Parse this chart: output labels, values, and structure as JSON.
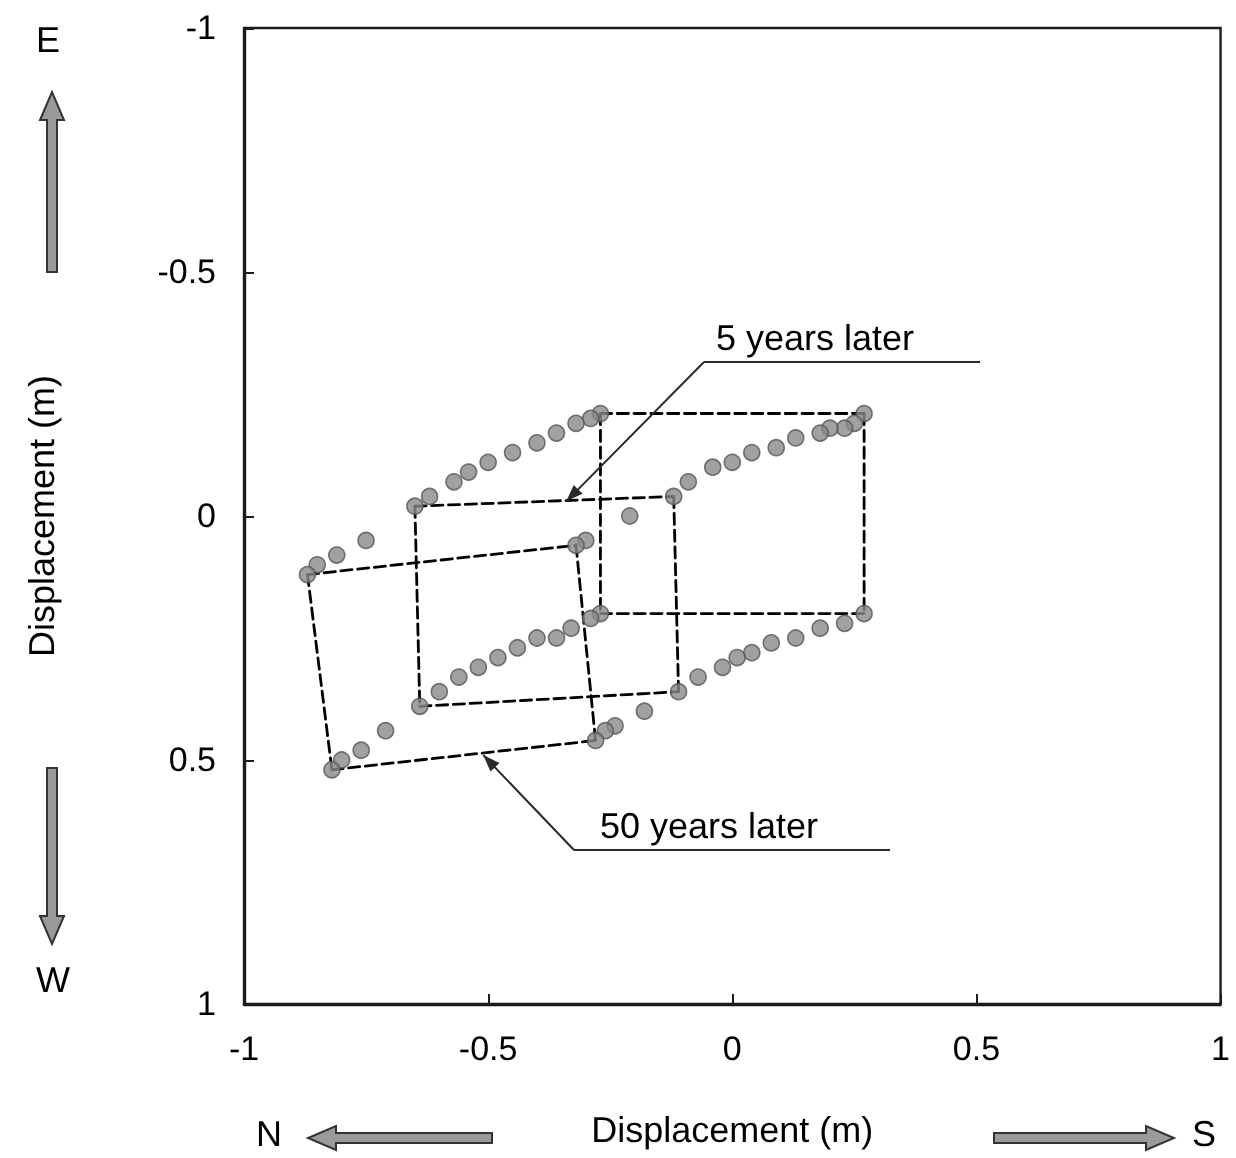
{
  "chart_data": {
    "type": "scatter",
    "xlabel": "Displacement (m)",
    "ylabel": "Displacement (m)",
    "xlim": [
      -1,
      1
    ],
    "ylim": [
      1,
      -1
    ],
    "xticks": [
      -1,
      -0.5,
      0,
      0.5,
      1
    ],
    "yticks": [
      -1,
      -0.5,
      0,
      0.5,
      1
    ],
    "marker": "circle",
    "annotations": [
      "E",
      "W",
      "N",
      "S",
      {
        "text": "5 years later",
        "x": -0.34,
        "y": -0.03
      },
      {
        "text": "50 years later",
        "x": -0.51,
        "y": 0.49
      }
    ],
    "series": [
      {
        "color": "#8a8a8a",
        "x": [
          0.27,
          0.25,
          0.23,
          0.2,
          0.18,
          0.13,
          0.09,
          0.04,
          0,
          -0.04,
          -0.09,
          -0.12,
          -0.21,
          -0.3,
          -0.32
        ],
        "values": [
          -0.21,
          -0.19,
          -0.18,
          -0.18,
          -0.17,
          -0.16,
          -0.14,
          -0.13,
          -0.11,
          -0.1,
          -0.07,
          -0.04,
          0,
          0.05,
          0.06
        ]
      },
      {
        "color": "#8a8a8a",
        "x": [
          -0.27,
          -0.29,
          -0.32,
          -0.36,
          -0.4,
          -0.45,
          -0.5,
          -0.54,
          -0.57,
          -0.62,
          -0.65,
          -0.75,
          -0.81,
          -0.85,
          -0.87
        ],
        "values": [
          -0.21,
          -0.2,
          -0.19,
          -0.17,
          -0.15,
          -0.13,
          -0.11,
          -0.09,
          -0.07,
          -0.04,
          -0.02,
          0.05,
          0.08,
          0.1,
          0.12
        ]
      },
      {
        "color": "#8a8a8a",
        "x": [
          -0.27,
          -0.29,
          -0.33,
          -0.36,
          -0.4,
          -0.44,
          -0.48,
          -0.52,
          -0.56,
          -0.6,
          -0.64,
          -0.71,
          -0.76,
          -0.8,
          -0.82
        ],
        "values": [
          0.2,
          0.21,
          0.23,
          0.25,
          0.25,
          0.27,
          0.29,
          0.31,
          0.33,
          0.36,
          0.39,
          0.44,
          0.48,
          0.5,
          0.52
        ]
      },
      {
        "color": "#8a8a8a",
        "x": [
          0.27,
          0.23,
          0.18,
          0.13,
          0.08,
          0.04,
          0.01,
          -0.02,
          -0.07,
          -0.11,
          -0.18,
          -0.24,
          -0.26,
          -0.28
        ],
        "values": [
          0.2,
          0.22,
          0.23,
          0.25,
          0.26,
          0.28,
          0.29,
          0.31,
          0.33,
          0.36,
          0.4,
          0.43,
          0.44,
          0.46
        ]
      },
      {
        "type": "line",
        "color": "#000000",
        "marker": "none",
        "line_style": "dashed",
        "x": [
          -0.27,
          0.27
        ],
        "values": [
          -0.21,
          -0.21
        ]
      },
      {
        "type": "line",
        "color": "#000000",
        "marker": "none",
        "line_style": "dashed",
        "x": [
          0.27,
          0.27
        ],
        "values": [
          -0.21,
          0.2
        ]
      },
      {
        "type": "line",
        "color": "#000000",
        "marker": "none",
        "line_style": "dashed",
        "x": [
          -0.27,
          0.27
        ],
        "values": [
          0.2,
          0.2
        ]
      },
      {
        "type": "line",
        "color": "#000000",
        "marker": "none",
        "line_style": "dashed",
        "x": [
          -0.27,
          -0.27
        ],
        "values": [
          -0.21,
          0.2
        ]
      },
      {
        "type": "line",
        "color": "#000000",
        "marker": "none",
        "line_style": "dashed",
        "x": [
          -0.65,
          -0.12
        ],
        "values": [
          -0.02,
          -0.04
        ]
      },
      {
        "type": "line",
        "color": "#000000",
        "marker": "none",
        "line_style": "dashed",
        "x": [
          -0.12,
          -0.11
        ],
        "values": [
          -0.04,
          0.36
        ]
      },
      {
        "type": "line",
        "color": "#000000",
        "marker": "none",
        "line_style": "dashed",
        "x": [
          -0.64,
          -0.11
        ],
        "values": [
          0.39,
          0.36
        ]
      },
      {
        "type": "line",
        "color": "#000000",
        "marker": "none",
        "line_style": "dashed",
        "x": [
          -0.65,
          -0.64
        ],
        "values": [
          -0.02,
          0.39
        ]
      },
      {
        "type": "line",
        "color": "#000000",
        "marker": "none",
        "line_style": "dashed",
        "x": [
          -0.87,
          -0.32
        ],
        "values": [
          0.12,
          0.06
        ]
      },
      {
        "type": "line",
        "color": "#000000",
        "marker": "none",
        "line_style": "dashed",
        "x": [
          -0.32,
          -0.28
        ],
        "values": [
          0.06,
          0.46
        ]
      },
      {
        "type": "line",
        "color": "#000000",
        "marker": "none",
        "line_style": "dashed",
        "x": [
          -0.82,
          -0.28
        ],
        "values": [
          0.52,
          0.46
        ]
      },
      {
        "type": "line",
        "color": "#000000",
        "marker": "none",
        "line_style": "dashed",
        "x": [
          -0.87,
          -0.82
        ],
        "values": [
          0.12,
          0.52
        ]
      }
    ]
  }
}
